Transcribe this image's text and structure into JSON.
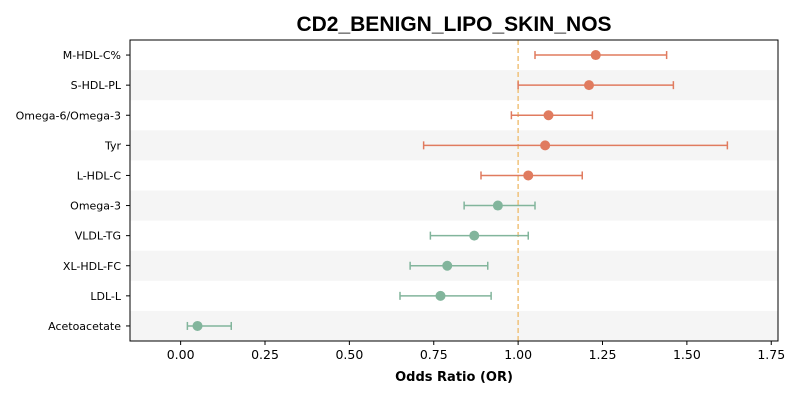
{
  "chart_data": {
    "type": "scatter",
    "title": "CD2_BENIGN_LIPO_SKIN_NOS",
    "xlabel": "Odds Ratio (OR)",
    "ylabel": "",
    "xlim": [
      -0.15,
      1.77
    ],
    "xticks": [
      0.0,
      0.25,
      0.5,
      0.75,
      1.0,
      1.25,
      1.5,
      1.75
    ],
    "xtick_labels": [
      "0.00",
      "0.25",
      "0.50",
      "0.75",
      "1.00",
      "1.25",
      "1.50",
      "1.75"
    ],
    "reference_line": 1.0,
    "reference_color": "#f0c27b",
    "increase_color": "#e07b5f",
    "decrease_color": "#82b59c",
    "band_color": "#f5f5f5",
    "grid": false,
    "points": [
      {
        "label": "M-HDL-C%",
        "or": 1.23,
        "lo": 1.05,
        "hi": 1.44
      },
      {
        "label": "S-HDL-PL",
        "or": 1.21,
        "lo": 1.0,
        "hi": 1.46
      },
      {
        "label": "Omega-6/Omega-3",
        "or": 1.09,
        "lo": 0.98,
        "hi": 1.22
      },
      {
        "label": "Tyr",
        "or": 1.08,
        "lo": 0.72,
        "hi": 1.62
      },
      {
        "label": "L-HDL-C",
        "or": 1.03,
        "lo": 0.89,
        "hi": 1.19
      },
      {
        "label": "Omega-3",
        "or": 0.94,
        "lo": 0.84,
        "hi": 1.05
      },
      {
        "label": "VLDL-TG",
        "or": 0.87,
        "lo": 0.74,
        "hi": 1.03
      },
      {
        "label": "XL-HDL-FC",
        "or": 0.79,
        "lo": 0.68,
        "hi": 0.91
      },
      {
        "label": "LDL-L",
        "or": 0.77,
        "lo": 0.65,
        "hi": 0.92
      },
      {
        "label": "Acetoacetate",
        "or": 0.05,
        "lo": 0.02,
        "hi": 0.15
      }
    ]
  }
}
